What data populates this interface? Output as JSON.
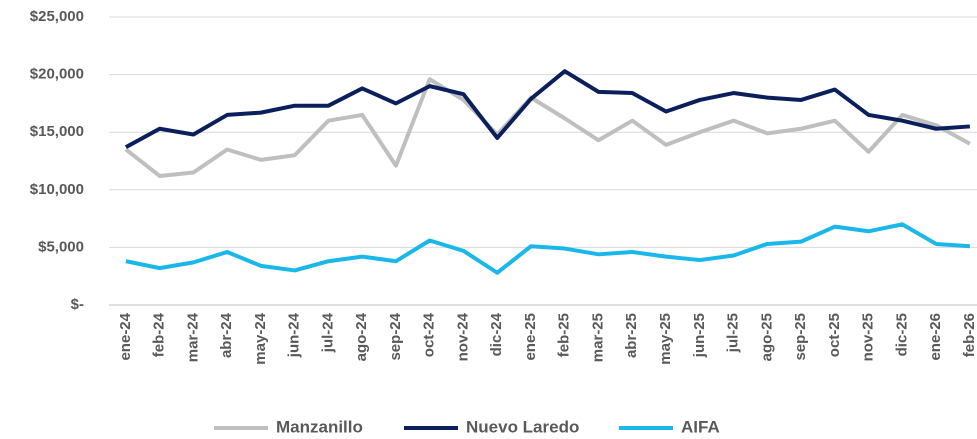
{
  "chart_data": {
    "type": "line",
    "categories": [
      "ene-24",
      "feb-24",
      "mar-24",
      "abr-24",
      "may-24",
      "jun-24",
      "jul-24",
      "ago-24",
      "sep-24",
      "oct-24",
      "nov-24",
      "dic-24",
      "ene-25",
      "feb-25",
      "mar-25",
      "abr-25",
      "may-25",
      "jun-25",
      "jul-25",
      "ago-25",
      "sep-25",
      "oct-25",
      "nov-25",
      "dic-25",
      "ene-26",
      "feb-26"
    ],
    "series": [
      {
        "name": "Manzanillo",
        "color": "#bfbfbf",
        "values": [
          13500,
          11200,
          11500,
          13500,
          12600,
          13000,
          16000,
          16500,
          12100,
          19600,
          17800,
          14800,
          18000,
          16200,
          14300,
          16000,
          13900,
          15000,
          16000,
          14900,
          15300,
          16000,
          13300,
          16500,
          15600,
          14000
        ]
      },
      {
        "name": "Nuevo Laredo",
        "color": "#0b1f5c",
        "values": [
          13700,
          15300,
          14800,
          16500,
          16700,
          17300,
          17300,
          18800,
          17500,
          19000,
          18300,
          14500,
          17900,
          20300,
          18500,
          18400,
          16800,
          17800,
          18400,
          18000,
          17800,
          18700,
          16500,
          16000,
          15300,
          15500
        ]
      },
      {
        "name": "AIFA",
        "color": "#1ab7ea",
        "values": [
          3800,
          3200,
          3700,
          4600,
          3400,
          3000,
          3800,
          4200,
          3800,
          5600,
          4700,
          2800,
          5100,
          4900,
          4400,
          4600,
          4200,
          3900,
          4300,
          5300,
          5500,
          6800,
          6400,
          7000,
          5300,
          5100
        ]
      }
    ],
    "ylim": [
      0,
      25000
    ],
    "yticks": [
      {
        "value": 0,
        "label": "$-"
      },
      {
        "value": 5000,
        "label": "$5,000"
      },
      {
        "value": 10000,
        "label": "$10,000"
      },
      {
        "value": 15000,
        "label": "$15,000"
      },
      {
        "value": 20000,
        "label": "$20,000"
      },
      {
        "value": 25000,
        "label": "$25,000"
      }
    ],
    "grid": true,
    "legend": "bottom"
  }
}
